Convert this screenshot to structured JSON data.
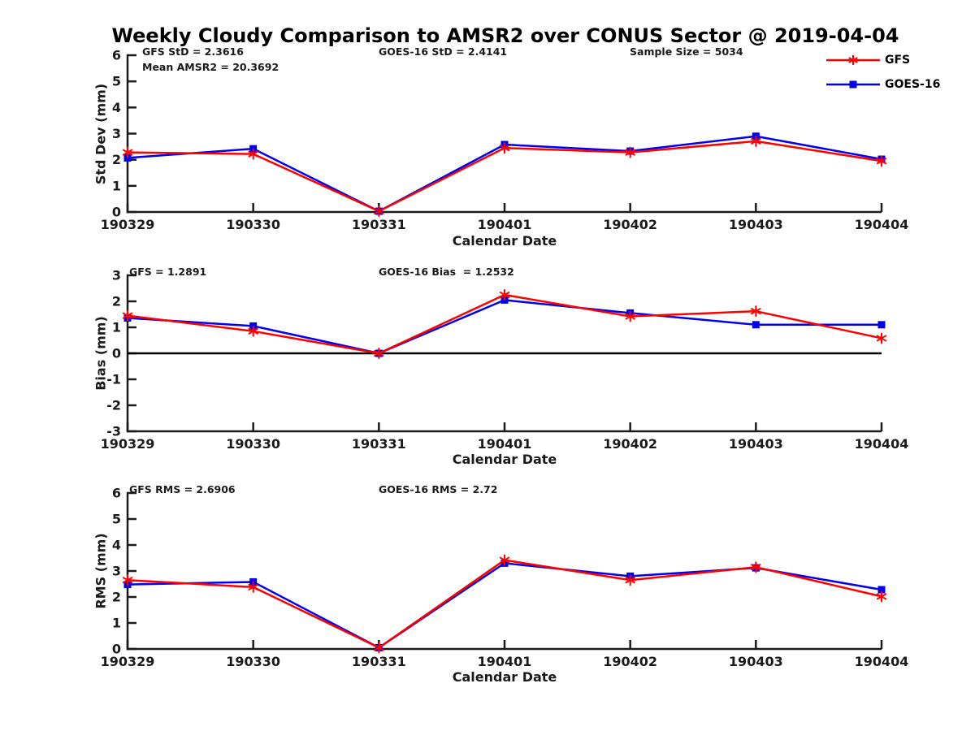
{
  "title": "Weekly Cloudy Comparison to AMSR2 over CONUS Sector @ 2019-04-04",
  "legend": {
    "items": [
      {
        "label": "GFS",
        "color": "#ff0000",
        "marker": "asterisk"
      },
      {
        "label": "GOES-16",
        "color": "#0000ee",
        "marker": "square"
      }
    ]
  },
  "colors": {
    "gfs": "#ff0000",
    "goes16": "#0000ee",
    "axis": "#1a1a1a",
    "zero_line": "#000000"
  },
  "chart_data": [
    {
      "type": "line",
      "ylabel": "Std Dev (mm)",
      "xlabel": "Calendar Date",
      "categories": [
        "190329",
        "190330",
        "190331",
        "190401",
        "190402",
        "190403",
        "190404"
      ],
      "ylim": [
        0,
        6
      ],
      "yticks": [
        0,
        1,
        2,
        3,
        4,
        5,
        6
      ],
      "grid": false,
      "zero_line": false,
      "series": [
        {
          "name": "GFS",
          "color": "#ff0000",
          "marker": "asterisk",
          "values": [
            2.28,
            2.22,
            0.03,
            2.45,
            2.28,
            2.71,
            1.95
          ]
        },
        {
          "name": "GOES-16",
          "color": "#0000ee",
          "marker": "square",
          "values": [
            2.07,
            2.42,
            0.03,
            2.58,
            2.33,
            2.9,
            2.02
          ]
        }
      ],
      "annotations": [
        "GFS StD = 2.3616",
        "Mean AMSR2 = 20.3692",
        "GOES-16 StD = 2.4141",
        "Sample Size = 5034"
      ]
    },
    {
      "type": "line",
      "ylabel": "Bias (mm)",
      "xlabel": "Calendar Date",
      "categories": [
        "190329",
        "190330",
        "190331",
        "190401",
        "190402",
        "190403",
        "190404"
      ],
      "ylim": [
        -3,
        3
      ],
      "yticks": [
        -3,
        -2,
        -1,
        0,
        1,
        2,
        3
      ],
      "grid": false,
      "zero_line": true,
      "series": [
        {
          "name": "GFS",
          "color": "#ff0000",
          "marker": "asterisk",
          "values": [
            1.45,
            0.85,
            0.0,
            2.25,
            1.42,
            1.62,
            0.58
          ]
        },
        {
          "name": "GOES-16",
          "color": "#0000ee",
          "marker": "square",
          "values": [
            1.36,
            1.05,
            0.0,
            2.05,
            1.55,
            1.1,
            1.1
          ]
        }
      ],
      "annotations": [
        "GFS = 1.2891",
        "GOES-16 Bias  = 1.2532"
      ]
    },
    {
      "type": "line",
      "ylabel": "RMS (mm)",
      "xlabel": "Calendar Date",
      "categories": [
        "190329",
        "190330",
        "190331",
        "190401",
        "190402",
        "190403",
        "190404"
      ],
      "ylim": [
        0,
        6
      ],
      "yticks": [
        0,
        1,
        2,
        3,
        4,
        5,
        6
      ],
      "grid": false,
      "zero_line": false,
      "series": [
        {
          "name": "GFS",
          "color": "#ff0000",
          "marker": "asterisk",
          "values": [
            2.65,
            2.38,
            0.05,
            3.42,
            2.65,
            3.15,
            2.02
          ]
        },
        {
          "name": "GOES-16",
          "color": "#0000ee",
          "marker": "square",
          "values": [
            2.48,
            2.58,
            0.05,
            3.3,
            2.8,
            3.12,
            2.28
          ]
        }
      ],
      "annotations": [
        "GFS RMS = 2.6906",
        "GOES-16 RMS = 2.72"
      ]
    }
  ]
}
